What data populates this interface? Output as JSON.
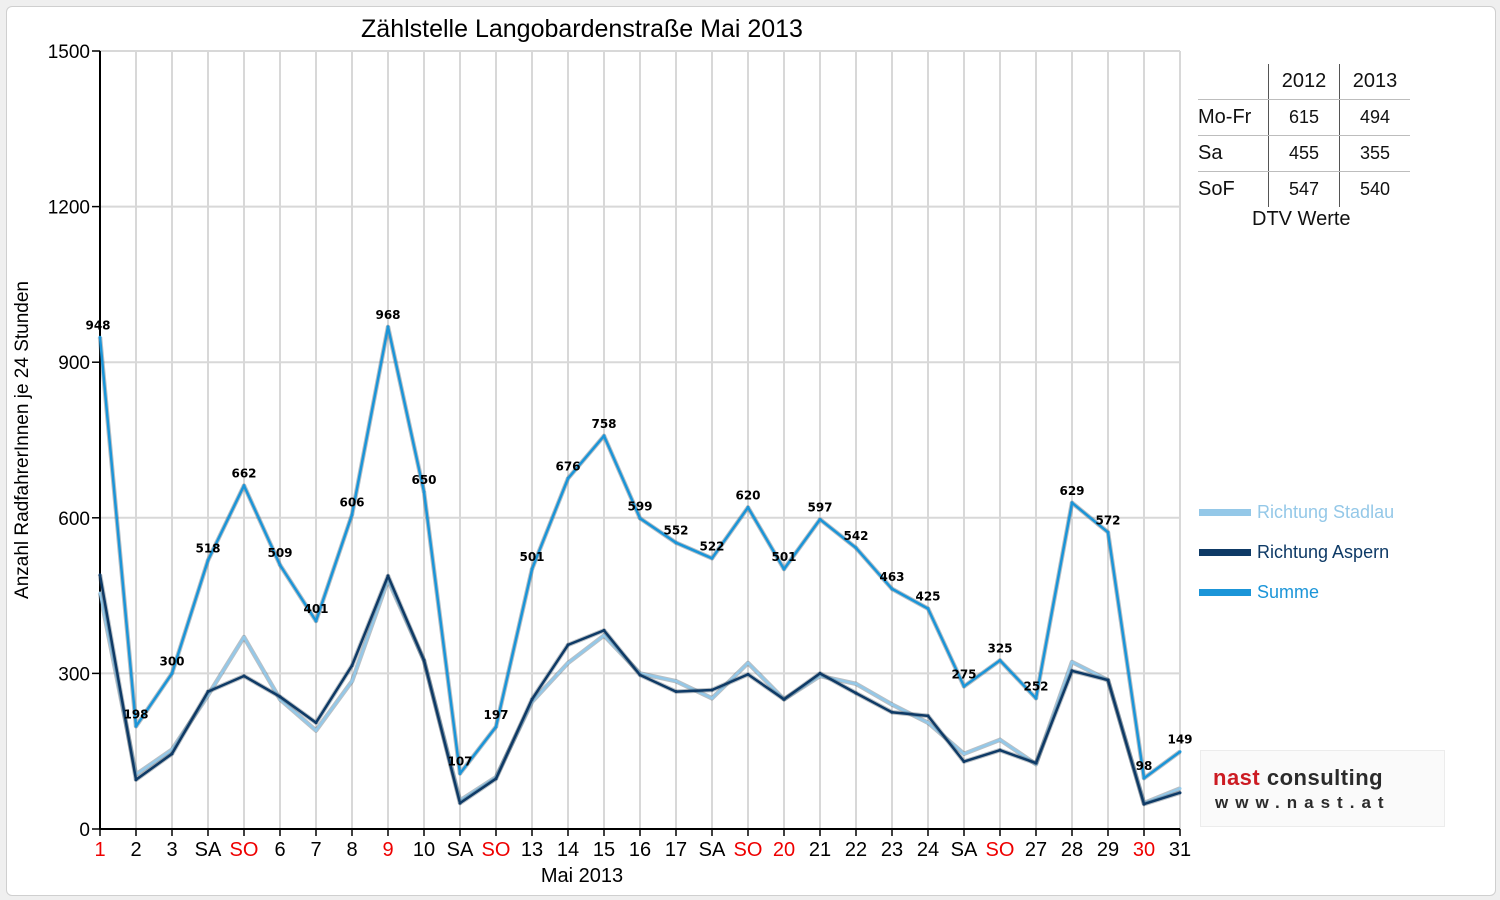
{
  "chart_data": {
    "type": "line",
    "title": "Zählstelle Langobardenstraße Mai 2013",
    "xlabel": "Mai 2013",
    "ylabel": "Anzahl RadfahrerInnen je 24 Stunden",
    "ylim": [
      0,
      1500
    ],
    "yticks": [
      "0",
      "300",
      "600",
      "900",
      "1200",
      "1500"
    ],
    "grid": "on",
    "categories": [
      "1",
      "2",
      "3",
      "SA",
      "SO",
      "6",
      "7",
      "8",
      "9",
      "10",
      "SA",
      "SO",
      "13",
      "14",
      "15",
      "16",
      "17",
      "SA",
      "SO",
      "20",
      "21",
      "22",
      "23",
      "24",
      "SA",
      "SO",
      "27",
      "28",
      "29",
      "30",
      "31"
    ],
    "red_categories": [
      0,
      4,
      8,
      11,
      18,
      19,
      25,
      29
    ],
    "series": [
      {
        "name": "Richtung Stadlau",
        "color": "#94c8e8",
        "values": [
          455,
          105,
          153,
          258,
          370,
          250,
          190,
          285,
          480,
          325,
          55,
          100,
          245,
          320,
          373,
          300,
          285,
          252,
          320,
          250,
          295,
          280,
          240,
          205,
          145,
          172,
          125,
          322,
          287,
          50,
          78
        ]
      },
      {
        "name": "Richtung Aspern",
        "color": "#0e3a66",
        "values": [
          490,
          95,
          145,
          265,
          295,
          255,
          205,
          315,
          488,
          325,
          50,
          97,
          250,
          355,
          383,
          297,
          265,
          268,
          298,
          250,
          300,
          262,
          225,
          218,
          130,
          152,
          127,
          305,
          287,
          48,
          70
        ]
      },
      {
        "name": "Summe",
        "color": "#1b95d8",
        "values": [
          948,
          198,
          300,
          518,
          662,
          509,
          401,
          606,
          968,
          650,
          107,
          197,
          501,
          676,
          758,
          599,
          552,
          522,
          620,
          501,
          597,
          542,
          463,
          425,
          275,
          325,
          252,
          629,
          572,
          98,
          149
        ]
      }
    ],
    "data_labels": [
      "948",
      "198",
      "300",
      "518",
      "662",
      "509",
      "401",
      "606",
      "968",
      "650",
      "107",
      "197",
      "501",
      "676",
      "758",
      "599",
      "552",
      "522",
      "620",
      "501",
      "597",
      "542",
      "463",
      "425",
      "275",
      "325",
      "252",
      "629",
      "572",
      "98",
      "149"
    ],
    "legend_position": "right"
  },
  "dtv_table": {
    "columns": [
      "2012",
      "2013"
    ],
    "rows": [
      {
        "label": "Mo-Fr",
        "v2012": "615",
        "v2013": "494"
      },
      {
        "label": "Sa",
        "v2012": "455",
        "v2013": "355"
      },
      {
        "label": "SoF",
        "v2012": "547",
        "v2013": "540"
      }
    ],
    "caption": "DTV Werte"
  },
  "logo": {
    "brand_red": "nast",
    "brand_dark": " consulting",
    "url": "www.nast.at"
  }
}
